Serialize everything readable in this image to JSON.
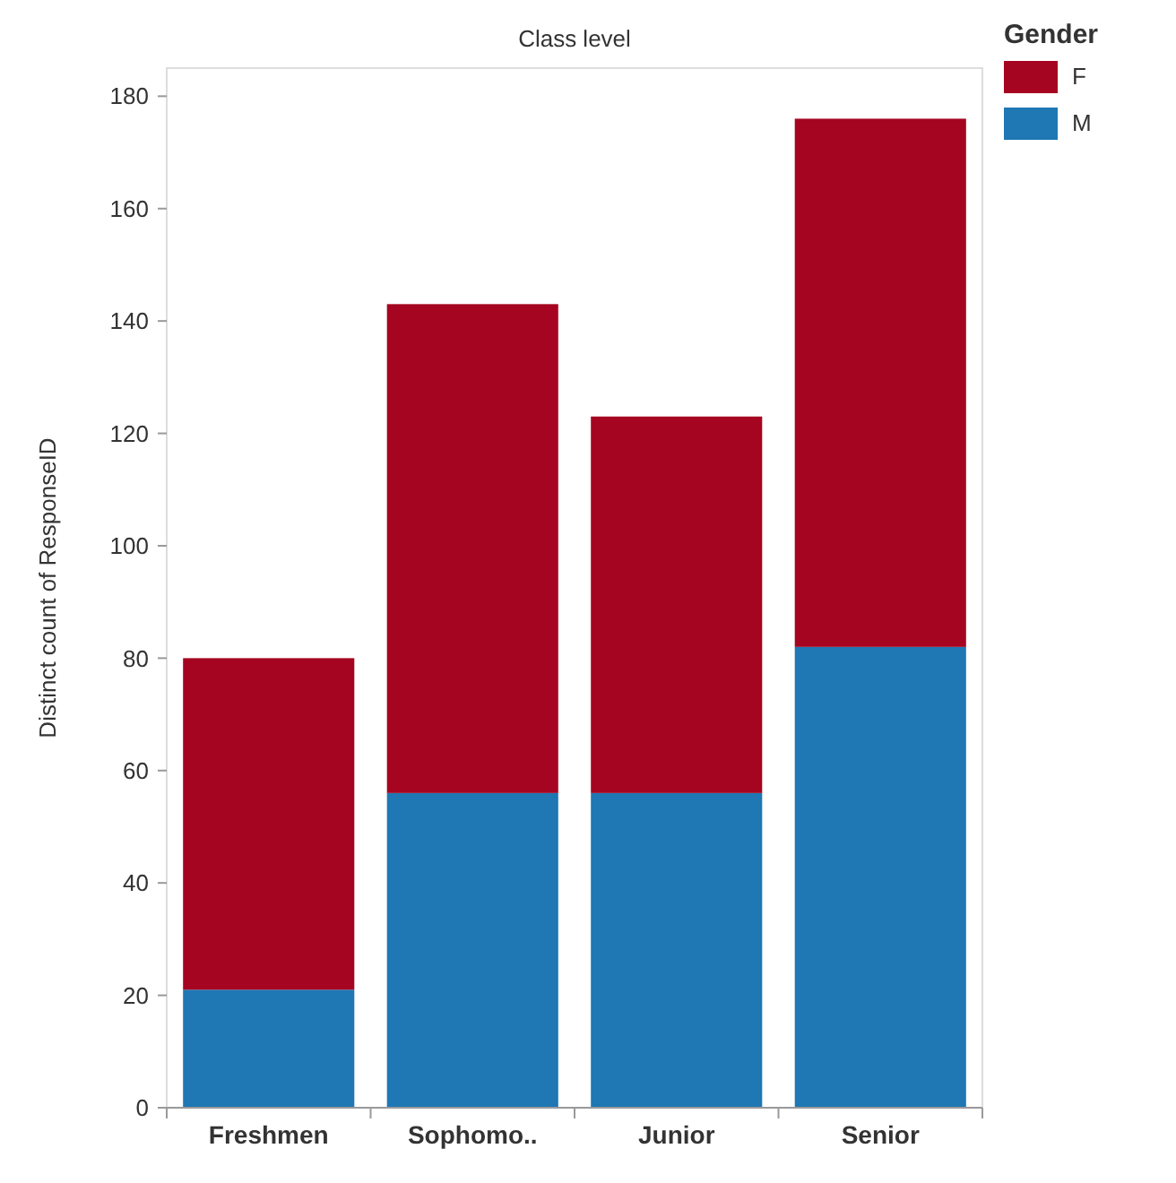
{
  "chart_data": {
    "type": "bar",
    "title": "Class level",
    "xlabel": null,
    "ylabel": "Distinct count of ResponseID",
    "legend_title": "Gender",
    "categories": [
      "Freshmen",
      "Sophomo..",
      "Junior",
      "Senior"
    ],
    "stacked": true,
    "series": [
      {
        "name": "M",
        "color": "#1f77b4",
        "values": [
          21,
          56,
          56,
          82
        ]
      },
      {
        "name": "F",
        "color": "#a50520",
        "values": [
          59,
          87,
          67,
          94
        ]
      }
    ],
    "ylim": [
      0,
      185
    ],
    "yticks": [
      0,
      20,
      40,
      60,
      80,
      100,
      120,
      140,
      160,
      180
    ],
    "legend": "top right"
  }
}
